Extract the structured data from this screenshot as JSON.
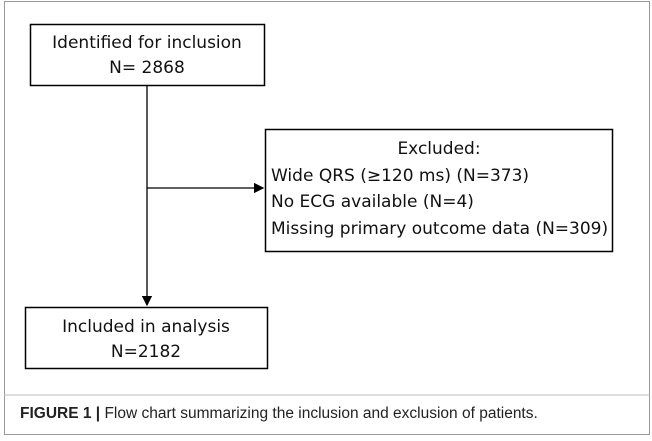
{
  "nodes": [
    {
      "lines": [
        "Identified for inclusion",
        "N= 2868"
      ]
    },
    {
      "lines": [
        "Excluded:",
        "Wide QRS (≥120 ms) (N=373)",
        "No ECG available  (N=4)",
        "Missing primary outcome data (N=309)"
      ]
    },
    {
      "lines": [
        "Included in analysis",
        "N=2182"
      ]
    }
  ],
  "caption": {
    "label": "FIGURE 1 |",
    "text": " Flow chart summarizing the inclusion and exclusion of patients."
  }
}
